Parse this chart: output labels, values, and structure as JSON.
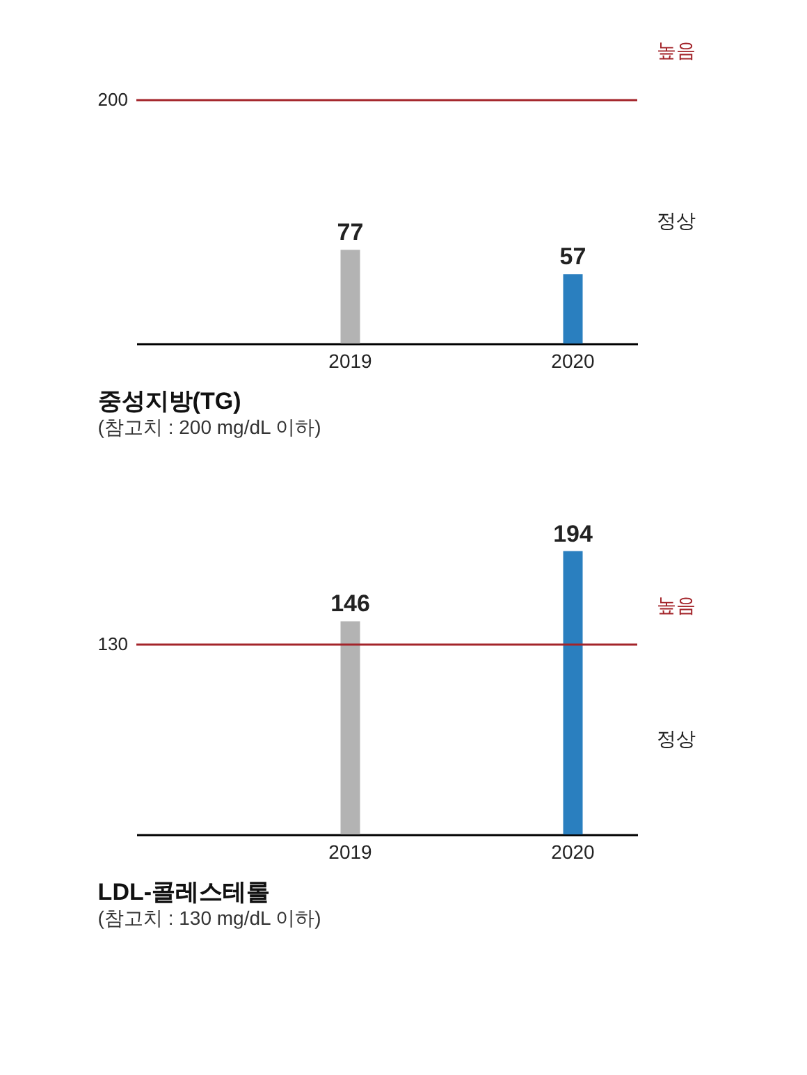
{
  "chart_data": [
    {
      "type": "bar",
      "title": "중성지방(TG)",
      "subtitle": "(참고치 : 200 mg/dL 이하)",
      "categories": [
        "2019",
        "2020"
      ],
      "values": [
        77,
        57
      ],
      "colors": [
        "#b3b3b3",
        "#2a7fbf"
      ],
      "data_labels": true,
      "ref_lines": [
        {
          "axis": "y",
          "value": 200,
          "label": "200",
          "color": "#a3242a"
        }
      ],
      "annotations": [
        "높음",
        "정상"
      ]
    },
    {
      "type": "bar",
      "title": "LDL-콜레스테롤",
      "subtitle": "(참고치 : 130 mg/dL 이하)",
      "categories": [
        "2019",
        "2020"
      ],
      "values": [
        146,
        194
      ],
      "colors": [
        "#b3b3b3",
        "#2a7fbf"
      ],
      "data_labels": true,
      "ref_lines": [
        {
          "axis": "y",
          "value": 130,
          "label": "130",
          "color": "#a3242a"
        }
      ],
      "annotations": [
        "높음",
        "정상"
      ]
    }
  ]
}
